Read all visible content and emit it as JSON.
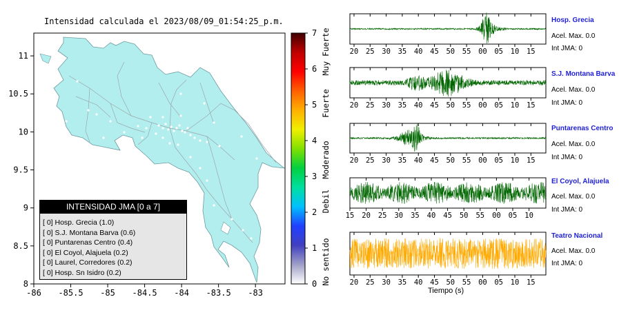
{
  "title": "Intensidad calculada el 2023/08/09_01:54:25_p.m.",
  "colorbar": {
    "ticks": [
      "0",
      "1",
      "2",
      "3",
      "4",
      "5",
      "6",
      "7"
    ],
    "labels": [
      "No sentido",
      "Debil",
      "Moderado",
      "Fuerte",
      "Muy Fuerte"
    ],
    "colors": [
      "#ffffff",
      "#a0a0c8",
      "#4040c0",
      "#2040ff",
      "#00c0ff",
      "#00e0a0",
      "#00d040",
      "#80e000",
      "#f0f000",
      "#ffb000",
      "#ff6000",
      "#ff0000",
      "#c00000",
      "#400000"
    ]
  },
  "legend": {
    "title": "INTENSIDAD JMA [0 a 7]",
    "items": [
      "[ 0]  Hosp. Grecia (1.0)",
      "[ 0]  S.J. Montana Barva (0.6)",
      "[ 0]  Puntarenas Centro (0.4)",
      "[ 0]  El Coyol, Alajuela (0.2)",
      "[ 0]  Laurel, Corredores (0.2)",
      "[ 0]  Hosp. Sn Isidro (0.2)"
    ]
  },
  "colors": {
    "land": "#b3eeee",
    "trace_green": "#006600",
    "trace_orange": "#ffaa00",
    "station_name": "#1f1fd6"
  },
  "seismograms": {
    "xlabel": "Tiempo (s)",
    "stations": [
      {
        "name": "Hosp. Grecia",
        "acel": "Acel. Max. 0.0",
        "jma": "Int JMA: 0",
        "ticks": [
          "20",
          "25",
          "30",
          "35",
          "40",
          "45",
          "50",
          "55",
          "00",
          "05",
          "10",
          "15"
        ],
        "color": "green"
      },
      {
        "name": "S.J. Montana Barva",
        "acel": "Acel. Max. 0.0",
        "jma": "Int JMA: 0",
        "ticks": [
          "20",
          "25",
          "30",
          "35",
          "40",
          "45",
          "50",
          "55",
          "00",
          "05",
          "10",
          "15"
        ],
        "color": "green"
      },
      {
        "name": "Puntarenas Centro",
        "acel": "Acel. Max. 0.0",
        "jma": "Int JMA: 0",
        "ticks": [
          "20",
          "25",
          "30",
          "35",
          "40",
          "45",
          "50",
          "55",
          "00",
          "05",
          "10",
          "15"
        ],
        "color": "green"
      },
      {
        "name": "El Coyol, Alajuela",
        "acel": "Acel. Max. 0.0",
        "jma": "Int JMA: 0",
        "ticks": [
          "15",
          "20",
          "25",
          "30",
          "35",
          "40",
          "45",
          "50",
          "55",
          "00",
          "05",
          "10"
        ],
        "color": "green"
      },
      {
        "name": "Teatro Nacional",
        "acel": "Acel. Max. 0.0",
        "jma": "Int JMA: 0",
        "ticks": [
          "20",
          "25",
          "30",
          "35",
          "40",
          "45",
          "50",
          "55",
          "00",
          "05",
          "10",
          "15"
        ],
        "color": "orange"
      }
    ]
  },
  "chart_data": {
    "type": "map",
    "title": "Intensidad calculada el 2023/08/09_01:54:25_p.m.",
    "x_ticks": [
      "-86",
      "-85.5",
      "-85",
      "-84.5",
      "-84",
      "-83.5",
      "-83"
    ],
    "y_ticks": [
      "8",
      "8.5",
      "9",
      "9.5",
      "10",
      "10.5",
      "11"
    ],
    "xlim": [
      -86,
      -82.6
    ],
    "ylim": [
      8,
      11.3
    ],
    "stations": [
      {
        "name": "Hosp. Grecia",
        "intensity": 1.0
      },
      {
        "name": "S.J. Montana Barva",
        "intensity": 0.6
      },
      {
        "name": "Puntarenas Centro",
        "intensity": 0.4
      },
      {
        "name": "El Coyol, Alajuela",
        "intensity": 0.2
      },
      {
        "name": "Laurel, Corredores",
        "intensity": 0.2
      },
      {
        "name": "Hosp. Sn Isidro",
        "intensity": 0.2
      }
    ]
  }
}
